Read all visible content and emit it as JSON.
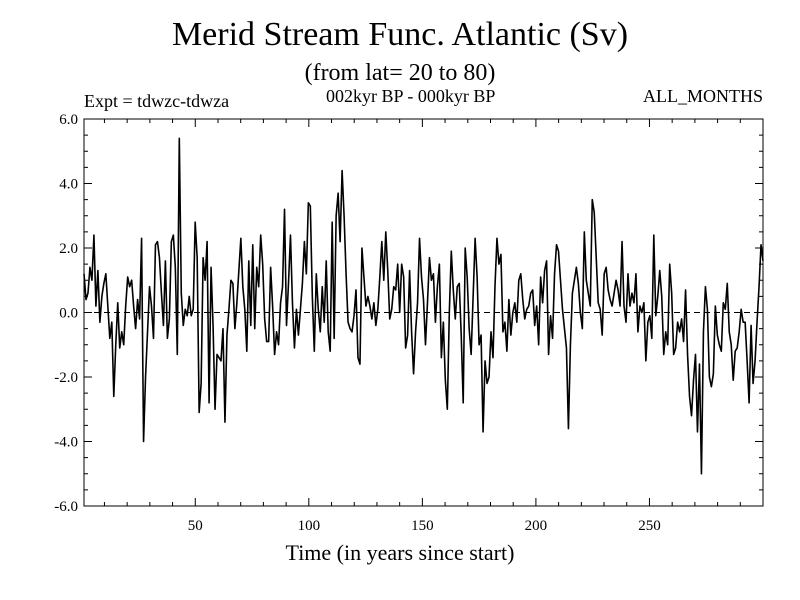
{
  "chart_data": {
    "type": "line",
    "title": "Merid Stream Func. Atlantic (Sv)",
    "subtitle": "(from lat= 20 to 80)",
    "annotations": {
      "left": "Expt = tdwzc-tdwza",
      "center": "002kyr BP - 000kyr BP",
      "right": "ALL_MONTHS"
    },
    "xlabel": "Time (in years since start)",
    "ylabel": "",
    "xlim": [
      1,
      300
    ],
    "ylim": [
      -6,
      6
    ],
    "x_ticks": [
      50,
      100,
      150,
      200,
      250
    ],
    "y_ticks": [
      "-6.0",
      "-4.0",
      "-2.0",
      "0.0",
      "2.0",
      "4.0",
      "6.0"
    ],
    "zero_line": "dashed",
    "series": [
      {
        "values": [
          1.2,
          0.4,
          0.6,
          1.4,
          1.0,
          2.4,
          0.2,
          1.3,
          -0.3,
          0.5,
          0.9,
          1.2,
          0.2,
          -0.8,
          -0.3,
          -2.6,
          -1.0,
          0.3,
          -1.1,
          -0.6,
          -1.0,
          0.2,
          1.1,
          0.8,
          1.0,
          0.2,
          -0.5,
          0.4,
          -0.2,
          2.3,
          -4.0,
          -2.0,
          -0.6,
          0.8,
          0.2,
          -0.8,
          2.1,
          2.2,
          1.7,
          0.6,
          -0.4,
          1.6,
          -0.8,
          -0.2,
          2.2,
          2.4,
          1.4,
          -1.3,
          5.4,
          0.6,
          -0.4,
          0.1,
          -0.1,
          0.5,
          -0.1,
          0.1,
          2.8,
          1.7,
          -3.1,
          -2.2,
          1.7,
          1.0,
          2.2,
          -2.8,
          1.4,
          -0.4,
          -3.0,
          -1.3,
          -1.4,
          -1.5,
          -0.5,
          -3.4,
          -0.7,
          0.1,
          1.0,
          0.9,
          -0.5,
          0.3,
          1.3,
          2.3,
          0.8,
          0.1,
          -1.2,
          1.6,
          -0.4,
          2.1,
          -0.5,
          1.4,
          0.8,
          2.4,
          1.5,
          -0.2,
          -0.9,
          -0.9,
          1.4,
          0.2,
          -1.3,
          -0.6,
          -1.0,
          0.3,
          0.8,
          3.2,
          -0.4,
          0.9,
          2.4,
          0.3,
          -1.1,
          0.1,
          -0.7,
          0.1,
          0.9,
          2.2,
          1.2,
          3.4,
          3.3,
          0.5,
          -1.2,
          1.2,
          0.1,
          -0.6,
          0.8,
          -0.3,
          1.6,
          -0.6,
          -1.2,
          2.8,
          -0.8,
          3.0,
          3.7,
          2.2,
          4.4,
          3.0,
          1.2,
          -0.3,
          -0.5,
          -0.6,
          -0.1,
          0.7,
          -1.4,
          -1.6,
          2.0,
          1.1,
          0.2,
          0.5,
          0.2,
          -0.2,
          0.3,
          -0.4,
          0.1,
          1.1,
          2.2,
          1.0,
          2.5,
          1.3,
          -0.2,
          0.1,
          0.8,
          0.7,
          1.5,
          0.0,
          1.5,
          1.1,
          -1.1,
          -0.7,
          1.3,
          -0.6,
          -1.9,
          -0.6,
          0.3,
          2.3,
          1.1,
          0.4,
          -1.0,
          0.3,
          1.7,
          1.0,
          1.2,
          -0.3,
          0.8,
          1.5,
          -1.4,
          -0.3,
          -2.1,
          -3.0,
          0.0,
          1.9,
          0.7,
          -0.2,
          0.8,
          0.9,
          -0.7,
          -2.8,
          2.0,
          1.1,
          -0.5,
          -1.3,
          0.5,
          2.3,
          1.1,
          -1.0,
          -0.7,
          -3.7,
          -1.5,
          -2.2,
          -2.0,
          -0.6,
          -1.4,
          0.8,
          2.3,
          1.5,
          1.8,
          -0.6,
          -0.3,
          -1.2,
          0.4,
          -0.7,
          0.0,
          0.3,
          -0.3,
          1.0,
          1.2,
          0.4,
          -0.2,
          0.1,
          0.2,
          0.6,
          0.7,
          -0.4,
          0.2,
          -1.0,
          1.1,
          0.3,
          1.3,
          1.6,
          -1.3,
          -0.1,
          -0.8,
          1.2,
          2.1,
          1.9,
          1.0,
          0.1,
          -0.5,
          -1.1,
          -3.6,
          -1.0,
          0.6,
          1.0,
          1.4,
          0.9,
          0.0,
          -0.5,
          2.5,
          1.0,
          0.6,
          0.2,
          3.5,
          3.1,
          1.7,
          0.3,
          0.1,
          -0.7,
          1.2,
          1.4,
          0.7,
          0.4,
          0.2,
          0.6,
          1.0,
          0.7,
          0.2,
          2.2,
          0.2,
          -0.3,
          1.2,
          0.2,
          0.6,
          0.3,
          1.2,
          -0.6,
          0.2,
          0.0,
          0.3,
          -1.5,
          -0.3,
          -0.1,
          -0.8,
          2.4,
          -0.1,
          0.5,
          1.3,
          0.5,
          -1.3,
          -0.6,
          -1.0,
          1.5,
          0.6,
          -1.3,
          -1.1,
          -0.3,
          -0.6,
          -0.2,
          -0.9,
          0.7,
          -1.3,
          -2.6,
          -3.2,
          -2.1,
          -1.3,
          -3.7,
          -1.6,
          -5.0,
          -0.6,
          0.8,
          0.1,
          -2.0,
          -2.3,
          -1.9,
          0.2,
          -0.7,
          -1.0,
          -1.2,
          0.3,
          0.1,
          0.9,
          -0.6,
          -1.0,
          -2.1,
          -1.2,
          -1.1,
          -0.6,
          0.1,
          -0.3,
          -0.3,
          -1.5,
          -2.8,
          -0.4,
          -2.2,
          -1.5,
          -0.3,
          0.8,
          2.1,
          1.6
        ]
      }
    ]
  }
}
